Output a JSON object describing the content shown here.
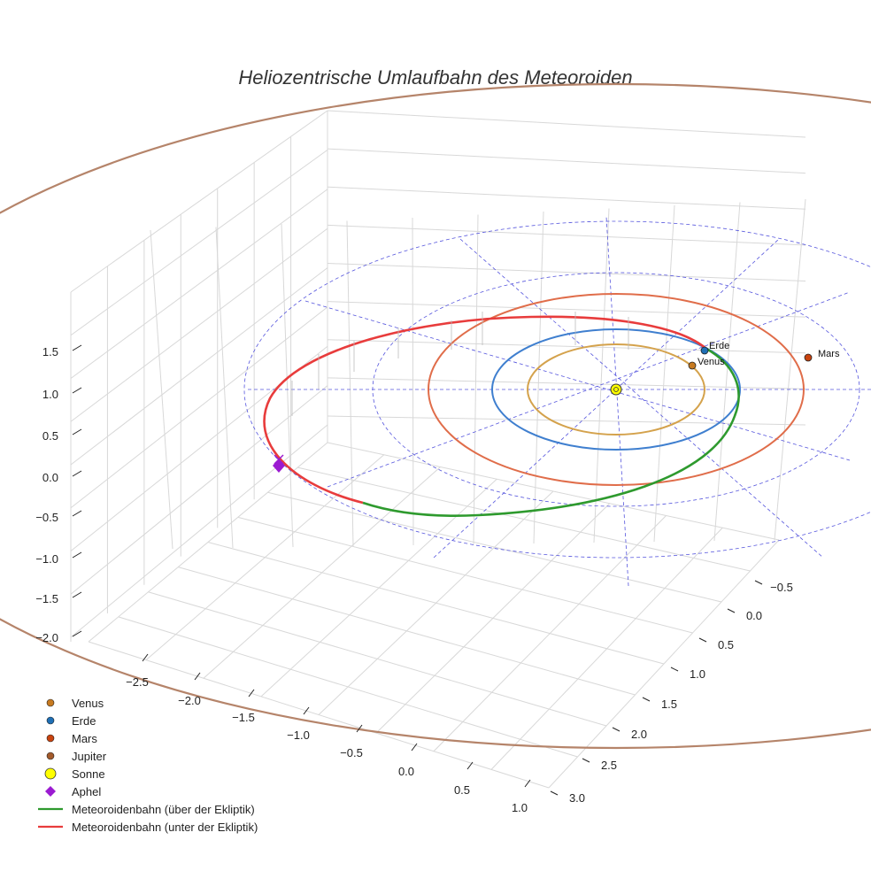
{
  "chart_data": {
    "type": "3d-line",
    "title": "Heliozentrische Umlaufbahn des Meteoroiden",
    "x_ticks": [
      "−2.5",
      "−2.0",
      "−1.5",
      "−1.0",
      "−0.5",
      "0.0",
      "0.5",
      "1.0"
    ],
    "y_ticks": [
      "−0.5",
      "0.0",
      "0.5",
      "1.0",
      "1.5",
      "2.0",
      "2.5",
      "3.0"
    ],
    "z_ticks": [
      "1.5",
      "1.0",
      "0.5",
      "0.0",
      "−0.5",
      "−1.0",
      "−1.5",
      "−2.0"
    ],
    "planets": [
      {
        "name": "Venus",
        "orbit_radius_au": 0.72,
        "color": "#d4a24c",
        "marker_color": "#c77a20",
        "label": "Venus"
      },
      {
        "name": "Erde",
        "orbit_radius_au": 1.0,
        "color": "#3f7fcf",
        "marker_color": "#1f6fb5",
        "label": "Erde"
      },
      {
        "name": "Mars",
        "orbit_radius_au": 1.52,
        "color": "#e06d4a",
        "marker_color": "#c9430f",
        "label": "Mars"
      },
      {
        "name": "Jupiter",
        "orbit_radius_au": 5.2,
        "color": "#b5846a",
        "marker_color": "#a35a2b"
      }
    ],
    "sun": {
      "name": "Sonne",
      "position": [
        0,
        0,
        0
      ],
      "color": "#ffff00"
    },
    "aphel": {
      "name": "Aphel",
      "color": "#9b1bd1"
    },
    "meteoroid_orbit": {
      "above_label": "Meteoroidenbahn (über der Ekliptik)",
      "below_label": "Meteoroidenbahn (unter der Ekliptik)",
      "above_color": "#2e9a2e",
      "below_color": "#e83c3c"
    },
    "ecliptic_grid_color": "#5555dd",
    "legend": [
      {
        "label": "Venus",
        "type": "dot",
        "color": "#c77a20"
      },
      {
        "label": "Erde",
        "type": "dot",
        "color": "#1f6fb5"
      },
      {
        "label": "Mars",
        "type": "dot",
        "color": "#c9430f"
      },
      {
        "label": "Jupiter",
        "type": "dot",
        "color": "#a35a2b"
      },
      {
        "label": "Sonne",
        "type": "sun",
        "color": "#ffff00"
      },
      {
        "label": "Aphel",
        "type": "diamond",
        "color": "#9b1bd1"
      },
      {
        "label": "Meteoroidenbahn (über der Ekliptik)",
        "type": "line",
        "color": "#2e9a2e"
      },
      {
        "label": "Meteoroidenbahn (unter der Ekliptik)",
        "type": "line",
        "color": "#e83c3c"
      }
    ]
  }
}
